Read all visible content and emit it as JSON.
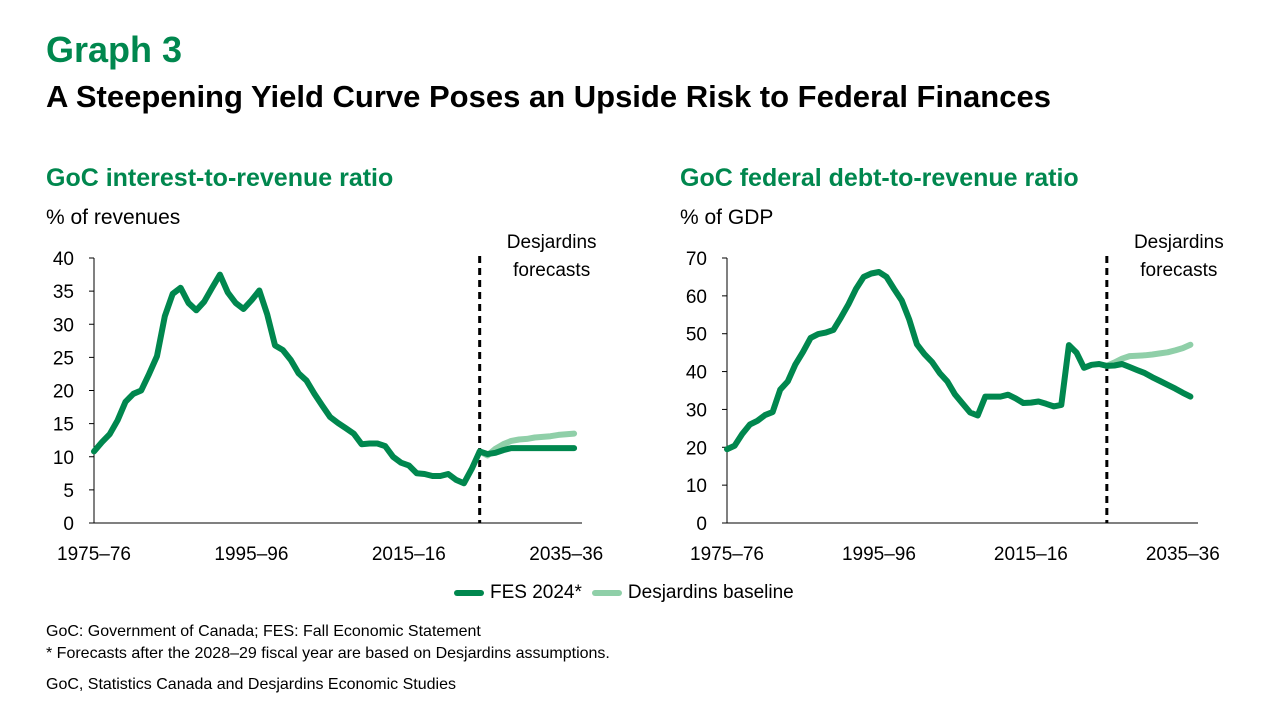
{
  "header": {
    "graph_label": "Graph 3",
    "title": "A Steepening Yield Curve Poses an Upside Risk to Federal Finances"
  },
  "colors": {
    "fes": "#00874e",
    "baseline": "#8fcfa8",
    "axis": "#000000"
  },
  "legend": {
    "fes": "FES 2024*",
    "baseline": "Desjardins baseline"
  },
  "footnotes": {
    "line1": "GoC: Government of Canada; FES: Fall Economic Statement",
    "line2": "* Forecasts after the 2028–29 fiscal year are based on Desjardins assumptions.",
    "source": "GoC, Statistics Canada and Desjardins Economic Studies"
  },
  "chart_data": [
    {
      "type": "line",
      "title": "GoC interest-to-revenue ratio",
      "ylabel": "% of revenues",
      "ylim": [
        0,
        40
      ],
      "yticks": [
        0,
        5,
        10,
        15,
        20,
        25,
        30,
        35,
        40
      ],
      "xlim": [
        1975,
        2037
      ],
      "xtick_labels": [
        {
          "x": 1975,
          "label": "1975–76"
        },
        {
          "x": 1995,
          "label": "1995–96"
        },
        {
          "x": 2015,
          "label": "2015–16"
        },
        {
          "x": 2035,
          "label": "2035–36"
        }
      ],
      "forecast_start": 2024,
      "annotation": [
        "Desjardins",
        "forecasts"
      ],
      "series": [
        {
          "name": "FES 2024*",
          "key": "fes",
          "points": [
            [
              1975,
              10.8
            ],
            [
              1976,
              12.2
            ],
            [
              1977,
              13.4
            ],
            [
              1978,
              15.5
            ],
            [
              1979,
              18.3
            ],
            [
              1980,
              19.5
            ],
            [
              1981,
              20
            ],
            [
              1982,
              22.5
            ],
            [
              1983,
              25.2
            ],
            [
              1984,
              31.2
            ],
            [
              1985,
              34.6
            ],
            [
              1986,
              35.5
            ],
            [
              1987,
              33.2
            ],
            [
              1988,
              32.1
            ],
            [
              1989,
              33.4
            ],
            [
              1990,
              35.5
            ],
            [
              1991,
              37.5
            ],
            [
              1992,
              34.8
            ],
            [
              1993,
              33.2
            ],
            [
              1994,
              32.3
            ],
            [
              1995,
              33.6
            ],
            [
              1996,
              35.1
            ],
            [
              1997,
              31.5
            ],
            [
              1998,
              26.8
            ],
            [
              1999,
              26.1
            ],
            [
              2000,
              24.6
            ],
            [
              2001,
              22.6
            ],
            [
              2002,
              21.5
            ],
            [
              2003,
              19.5
            ],
            [
              2004,
              17.7
            ],
            [
              2005,
              16
            ],
            [
              2006,
              15.1
            ],
            [
              2007,
              14.3
            ],
            [
              2008,
              13.5
            ],
            [
              2009,
              11.9
            ],
            [
              2010,
              12
            ],
            [
              2011,
              12
            ],
            [
              2012,
              11.6
            ],
            [
              2013,
              10
            ],
            [
              2014,
              9.1
            ],
            [
              2015,
              8.7
            ],
            [
              2016,
              7.5
            ],
            [
              2017,
              7.4
            ],
            [
              2018,
              7.1
            ],
            [
              2019,
              7.1
            ],
            [
              2020,
              7.4
            ],
            [
              2021,
              6.5
            ],
            [
              2022,
              6
            ],
            [
              2023,
              8.2
            ],
            [
              2024,
              10.8
            ],
            [
              2025,
              10.4
            ],
            [
              2026,
              10.6
            ],
            [
              2027,
              11
            ],
            [
              2028,
              11.3
            ],
            [
              2029,
              11.3
            ],
            [
              2030,
              11.3
            ],
            [
              2031,
              11.3
            ],
            [
              2032,
              11.3
            ],
            [
              2033,
              11.3
            ],
            [
              2034,
              11.3
            ],
            [
              2035,
              11.3
            ],
            [
              2036,
              11.3
            ]
          ]
        },
        {
          "name": "Desjardins baseline",
          "key": "baseline",
          "points": [
            [
              2024,
              10.8
            ],
            [
              2025,
              10.2
            ],
            [
              2026,
              11.2
            ],
            [
              2027,
              11.9
            ],
            [
              2028,
              12.4
            ],
            [
              2029,
              12.6
            ],
            [
              2030,
              12.7
            ],
            [
              2031,
              12.9
            ],
            [
              2032,
              13
            ],
            [
              2033,
              13.1
            ],
            [
              2034,
              13.3
            ],
            [
              2035,
              13.4
            ],
            [
              2036,
              13.5
            ]
          ]
        }
      ]
    },
    {
      "type": "line",
      "title": "GoC federal debt-to-revenue ratio",
      "ylabel": "% of GDP",
      "ylim": [
        0,
        70
      ],
      "yticks": [
        0,
        10,
        20,
        30,
        40,
        50,
        60,
        70
      ],
      "xlim": [
        1975,
        2037
      ],
      "xtick_labels": [
        {
          "x": 1975,
          "label": "1975–76"
        },
        {
          "x": 1995,
          "label": "1995–96"
        },
        {
          "x": 2015,
          "label": "2015–16"
        },
        {
          "x": 2035,
          "label": "2035–36"
        }
      ],
      "forecast_start": 2025,
      "annotation": [
        "Desjardins",
        "forecasts"
      ],
      "series": [
        {
          "name": "FES 2024*",
          "key": "fes",
          "points": [
            [
              1975,
              19.5
            ],
            [
              1976,
              20.4
            ],
            [
              1977,
              23.5
            ],
            [
              1978,
              26
            ],
            [
              1979,
              27
            ],
            [
              1980,
              28.5
            ],
            [
              1981,
              29.3
            ],
            [
              1982,
              35.2
            ],
            [
              1983,
              37.4
            ],
            [
              1984,
              41.9
            ],
            [
              1985,
              45.2
            ],
            [
              1986,
              48.9
            ],
            [
              1987,
              49.9
            ],
            [
              1988,
              50.3
            ],
            [
              1989,
              51
            ],
            [
              1990,
              54.3
            ],
            [
              1991,
              57.8
            ],
            [
              1992,
              61.9
            ],
            [
              1993,
              65
            ],
            [
              1994,
              65.9
            ],
            [
              1995,
              66.3
            ],
            [
              1996,
              65
            ],
            [
              1997,
              61.8
            ],
            [
              1998,
              58.8
            ],
            [
              1999,
              53.7
            ],
            [
              2000,
              47.2
            ],
            [
              2001,
              44.6
            ],
            [
              2002,
              42.5
            ],
            [
              2003,
              39.6
            ],
            [
              2004,
              37.4
            ],
            [
              2005,
              34
            ],
            [
              2006,
              31.6
            ],
            [
              2007,
              29.2
            ],
            [
              2008,
              28.4
            ],
            [
              2009,
              33.4
            ],
            [
              2010,
              33.4
            ],
            [
              2011,
              33.4
            ],
            [
              2012,
              33.9
            ],
            [
              2013,
              32.9
            ],
            [
              2014,
              31.7
            ],
            [
              2015,
              31.8
            ],
            [
              2016,
              32.1
            ],
            [
              2017,
              31.5
            ],
            [
              2018,
              30.8
            ],
            [
              2019,
              31.2
            ],
            [
              2020,
              47
            ],
            [
              2021,
              45
            ],
            [
              2022,
              41
            ],
            [
              2023,
              41.8
            ],
            [
              2024,
              42
            ],
            [
              2025,
              41.5
            ],
            [
              2026,
              41.6
            ],
            [
              2027,
              42
            ],
            [
              2028,
              41.2
            ],
            [
              2029,
              40.4
            ],
            [
              2030,
              39.6
            ],
            [
              2031,
              38.5
            ],
            [
              2032,
              37.5
            ],
            [
              2033,
              36.5
            ],
            [
              2034,
              35.5
            ],
            [
              2035,
              34.4
            ],
            [
              2036,
              33.4
            ]
          ]
        },
        {
          "name": "Desjardins baseline",
          "key": "baseline",
          "points": [
            [
              2025,
              41.5
            ],
            [
              2026,
              42.4
            ],
            [
              2027,
              43.4
            ],
            [
              2028,
              44.1
            ],
            [
              2029,
              44.2
            ],
            [
              2030,
              44.3
            ],
            [
              2031,
              44.5
            ],
            [
              2032,
              44.8
            ],
            [
              2033,
              45.1
            ],
            [
              2034,
              45.6
            ],
            [
              2035,
              46.2
            ],
            [
              2036,
              47.1
            ]
          ]
        }
      ]
    }
  ]
}
